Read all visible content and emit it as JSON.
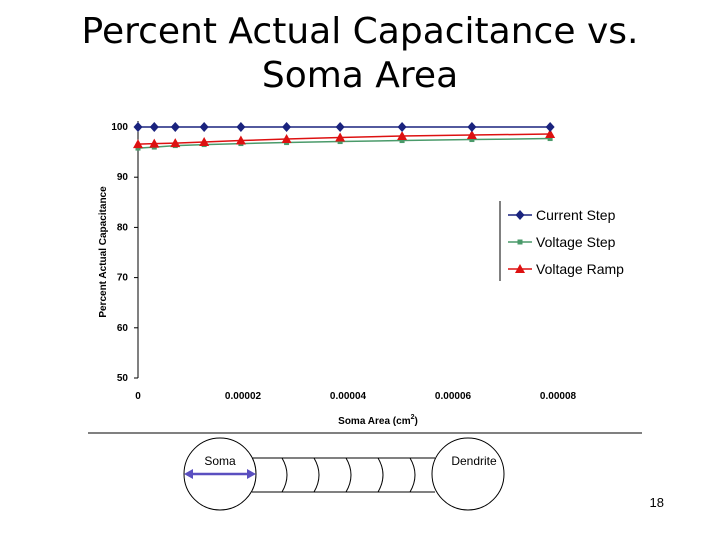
{
  "slide": {
    "title_line1": "Percent Actual Capacitance vs.",
    "title_line2": "Soma Area",
    "page_number": "18"
  },
  "chart_data": {
    "type": "line",
    "ylabel": "Percent Actual Capacitance",
    "xlabel_text": "Soma Area (cm",
    "xlabel_sup": "2",
    "xlabel_close": ")",
    "xlim": [
      0,
      8e-05
    ],
    "ylim": [
      50,
      100
    ],
    "x_ticks": [
      0,
      2e-05,
      4e-05,
      6e-05,
      8e-05
    ],
    "x_tick_labels": [
      "0",
      "0.00002",
      "0.00004",
      "0.00006",
      "0.00008"
    ],
    "y_ticks": [
      50,
      60,
      70,
      80,
      90,
      100
    ],
    "y_tick_labels": [
      "50",
      "60",
      "70",
      "80",
      "90",
      "100"
    ],
    "grid": false,
    "legend_position": "right",
    "x": [
      0,
      3.1e-06,
      7.1e-06,
      1.26e-05,
      1.96e-05,
      2.83e-05,
      3.85e-05,
      5.03e-05,
      6.36e-05,
      7.85e-05
    ],
    "series": [
      {
        "name": "Current Step",
        "color": "#1a237e",
        "marker": "diamond",
        "values": [
          100,
          100,
          100,
          100,
          100,
          100,
          100,
          100,
          100,
          100
        ]
      },
      {
        "name": "Voltage Step",
        "color": "#4a9a6a",
        "marker": "square",
        "values": [
          95.8,
          96.0,
          96.3,
          96.5,
          96.7,
          96.9,
          97.1,
          97.3,
          97.5,
          97.7
        ]
      },
      {
        "name": "Voltage Ramp",
        "color": "#dd1111",
        "marker": "triangle",
        "values": [
          96.6,
          96.7,
          96.8,
          97.0,
          97.3,
          97.6,
          97.9,
          98.2,
          98.4,
          98.6
        ]
      }
    ]
  },
  "diagram": {
    "soma_label": "Soma",
    "dendrite_label": "Dendrite",
    "arrow_color": "#5a4fc0"
  }
}
